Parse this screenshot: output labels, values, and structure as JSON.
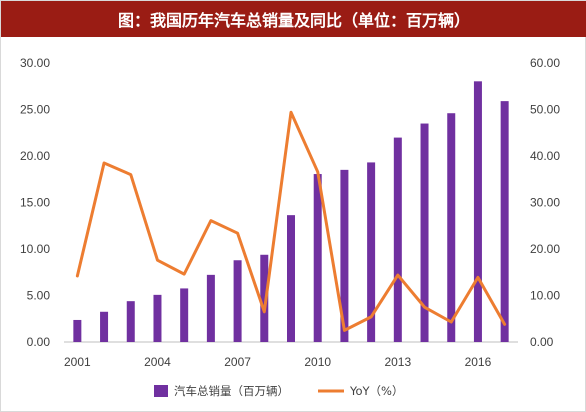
{
  "chart_data": {
    "type": "bar",
    "title": "图：我国历年汽车总销量及同比（单位：百万辆）",
    "x": [
      2001,
      2002,
      2003,
      2004,
      2005,
      2006,
      2007,
      2008,
      2009,
      2010,
      2011,
      2012,
      2013,
      2014,
      2015,
      2016,
      2017
    ],
    "x_tick_labels": [
      "2001",
      "2004",
      "2007",
      "2010",
      "2013",
      "2016"
    ],
    "series": [
      {
        "name": "汽车总销量（百万辆）",
        "type": "bar",
        "axis": "left",
        "color": "#7030a0",
        "values": [
          2.37,
          3.25,
          4.39,
          5.07,
          5.76,
          7.22,
          8.79,
          9.38,
          13.64,
          18.06,
          18.51,
          19.31,
          21.98,
          23.49,
          24.6,
          28.03,
          25.9
        ]
      },
      {
        "name": "YoY（%）",
        "type": "line",
        "axis": "right",
        "color": "#ed7d31",
        "values": [
          14.2,
          38.5,
          36.0,
          17.6,
          14.6,
          26.1,
          23.4,
          6.5,
          49.4,
          36.6,
          2.5,
          5.4,
          14.4,
          7.5,
          4.3,
          13.9,
          3.8
        ]
      }
    ],
    "y_left": {
      "min": 0,
      "max": 30,
      "step": 5,
      "tick_labels": [
        "0.00",
        "5.00",
        "10.00",
        "15.00",
        "20.00",
        "25.00",
        "30.00"
      ]
    },
    "y_right": {
      "min": 0,
      "max": 60,
      "step": 10,
      "tick_labels": [
        "0.00",
        "10.00",
        "20.00",
        "30.00",
        "40.00",
        "50.00",
        "60.00"
      ]
    },
    "grid": false,
    "legend_position": "bottom"
  }
}
